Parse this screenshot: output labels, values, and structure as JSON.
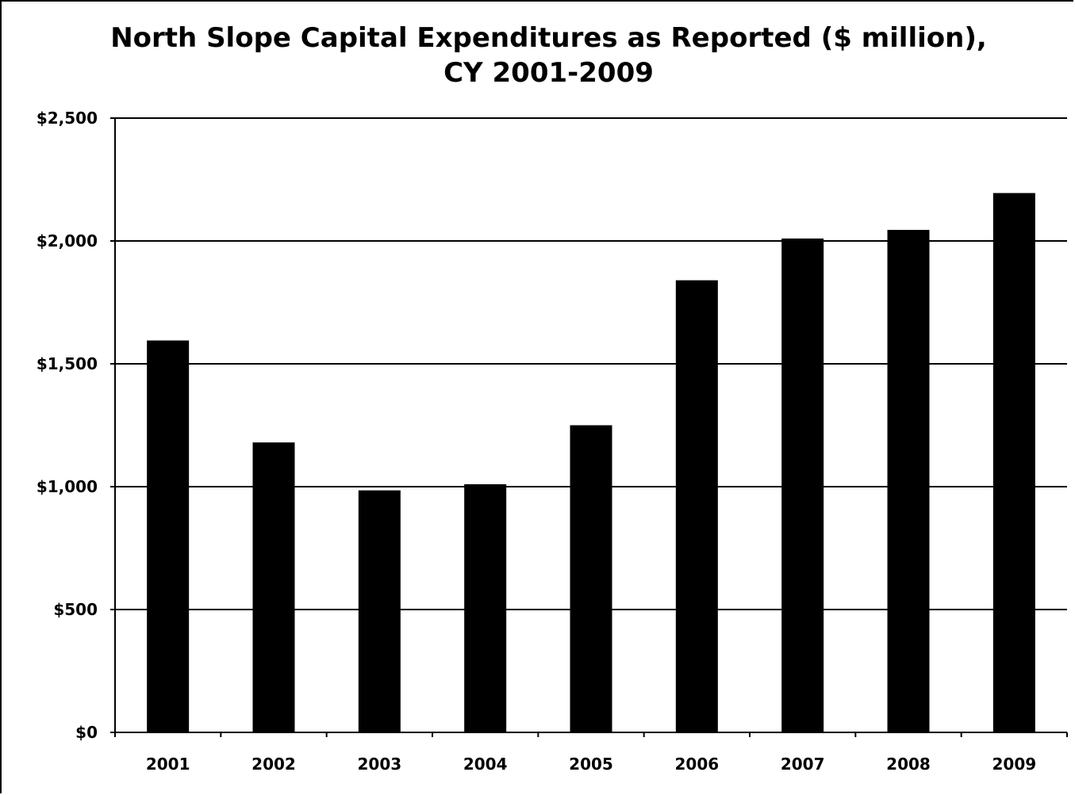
{
  "chart_data": {
    "type": "bar",
    "title": "North Slope Capital Expenditures as Reported ($ million),",
    "subtitle": "CY 2001-2009",
    "xlabel": "",
    "ylabel": "",
    "categories": [
      "2001",
      "2002",
      "2003",
      "2004",
      "2005",
      "2006",
      "2007",
      "2008",
      "2009"
    ],
    "values": [
      1595,
      1180,
      985,
      1010,
      1250,
      1840,
      2010,
      2045,
      2195
    ],
    "ylim": [
      0,
      2500
    ],
    "yticks": [
      0,
      500,
      1000,
      1500,
      2000,
      2500
    ],
    "ytick_labels": [
      "$0",
      "$500",
      "$1,000",
      "$1,500",
      "$2,000",
      "$2,500"
    ],
    "grid": true,
    "legend": "none",
    "bar_color": "#000000"
  }
}
